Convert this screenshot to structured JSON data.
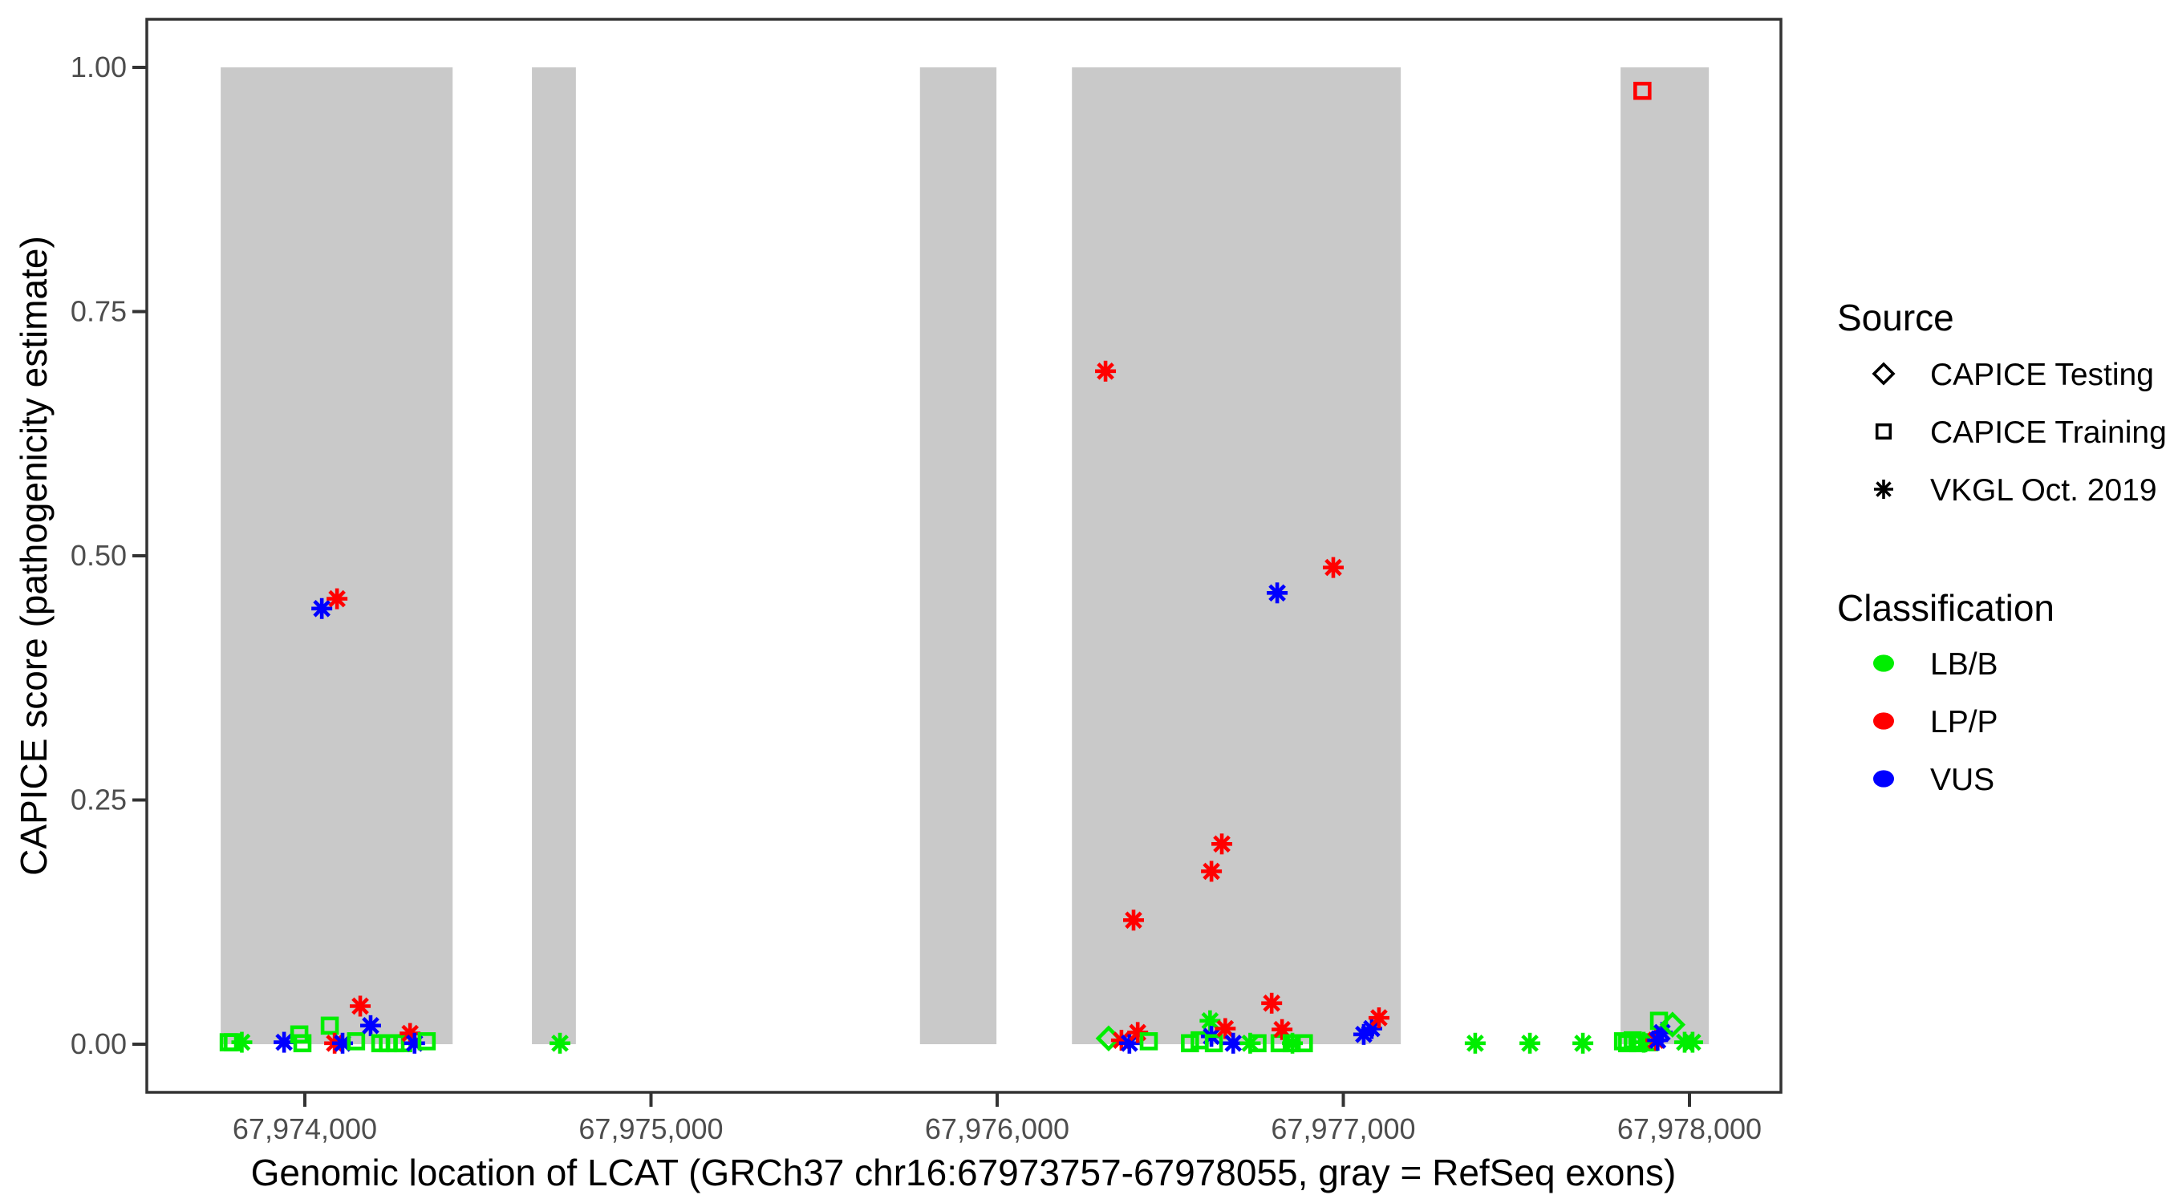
{
  "figure": {
    "type_note": "scatter plot of variant pathogenicity scores over genomic coordinates"
  },
  "chart_data": {
    "type": "scatter",
    "title": "",
    "xlabel": "Genomic location of LCAT (GRCh37 chr16:67973757-67978055, gray = RefSeq exons)",
    "ylabel": "CAPICE score (pathogenicity estimate)",
    "xlim": [
      67973543,
      67978264
    ],
    "ylim": [
      0,
      1
    ],
    "grid": false,
    "x_ticks": [
      67974000,
      67975000,
      67976000,
      67977000,
      67978000
    ],
    "x_tick_labels": [
      "67,974,000",
      "67,975,000",
      "67,976,000",
      "67,977,000",
      "67,978,000"
    ],
    "y_ticks": [
      0.0,
      0.25,
      0.5,
      0.75,
      1.0
    ],
    "y_tick_labels": [
      "0.00",
      "0.25",
      "0.50",
      "0.75",
      "1.00"
    ],
    "exon_color": "#C9C9C9",
    "exons_grch37": [
      {
        "start": 67973757,
        "end": 67974427
      },
      {
        "start": 67974656,
        "end": 67974783
      },
      {
        "start": 67975777,
        "end": 67975998
      },
      {
        "start": 67976216,
        "end": 67977166
      },
      {
        "start": 67977801,
        "end": 67978056
      }
    ],
    "shape_by_source": {
      "CAPICE Testing": "diamond",
      "CAPICE Training": "square",
      "VKGL Oct. 2019": "asterisk"
    },
    "color_by_classification": {
      "LB/B": "#00EE00",
      "LP/P": "#FF0000",
      "VUS": "#0000FF"
    },
    "points": [
      {
        "g": 67973780,
        "score": 0.002,
        "source": "CAPICE Training",
        "class": "LB/B"
      },
      {
        "g": 67973792,
        "score": 0.002,
        "source": "CAPICE Training",
        "class": "LB/B"
      },
      {
        "g": 67973818,
        "score": 0.002,
        "source": "VKGL Oct. 2019",
        "class": "LB/B"
      },
      {
        "g": 67973940,
        "score": 0.002,
        "source": "VKGL Oct. 2019",
        "class": "VUS"
      },
      {
        "g": 67973984,
        "score": 0.01,
        "source": "CAPICE Training",
        "class": "LB/B"
      },
      {
        "g": 67973993,
        "score": 0.001,
        "source": "CAPICE Training",
        "class": "LB/B"
      },
      {
        "g": 67974049,
        "score": 0.446,
        "source": "VKGL Oct. 2019",
        "class": "VUS"
      },
      {
        "g": 67974093,
        "score": 0.456,
        "source": "VKGL Oct. 2019",
        "class": "LP/P"
      },
      {
        "g": 67974072,
        "score": 0.019,
        "source": "CAPICE Training",
        "class": "LB/B"
      },
      {
        "g": 67974086,
        "score": 0.001,
        "source": "VKGL Oct. 2019",
        "class": "LP/P"
      },
      {
        "g": 67974109,
        "score": 0.001,
        "source": "VKGL Oct. 2019",
        "class": "VUS"
      },
      {
        "g": 67974148,
        "score": 0.003,
        "source": "CAPICE Training",
        "class": "LB/B"
      },
      {
        "g": 67974160,
        "score": 0.039,
        "source": "VKGL Oct. 2019",
        "class": "LP/P"
      },
      {
        "g": 67974190,
        "score": 0.019,
        "source": "VKGL Oct. 2019",
        "class": "VUS"
      },
      {
        "g": 67974218,
        "score": 0.001,
        "source": "CAPICE Training",
        "class": "LB/B"
      },
      {
        "g": 67974240,
        "score": 0.001,
        "source": "CAPICE Training",
        "class": "LB/B"
      },
      {
        "g": 67974262,
        "score": 0.001,
        "source": "CAPICE Training",
        "class": "LB/B"
      },
      {
        "g": 67974284,
        "score": 0.001,
        "source": "CAPICE Training",
        "class": "LB/B"
      },
      {
        "g": 67974304,
        "score": 0.011,
        "source": "VKGL Oct. 2019",
        "class": "LP/P"
      },
      {
        "g": 67974317,
        "score": 0.001,
        "source": "VKGL Oct. 2019",
        "class": "VUS"
      },
      {
        "g": 67974352,
        "score": 0.003,
        "source": "CAPICE Training",
        "class": "LB/B"
      },
      {
        "g": 67974737,
        "score": 0.001,
        "source": "VKGL Oct. 2019",
        "class": "LB/B"
      },
      {
        "g": 67976313,
        "score": 0.689,
        "source": "VKGL Oct. 2019",
        "class": "LP/P"
      },
      {
        "g": 67976322,
        "score": 0.006,
        "source": "CAPICE Testing",
        "class": "LB/B"
      },
      {
        "g": 67976359,
        "score": 0.004,
        "source": "VKGL Oct. 2019",
        "class": "LP/P"
      },
      {
        "g": 67976382,
        "score": 0.001,
        "source": "VKGL Oct. 2019",
        "class": "VUS"
      },
      {
        "g": 67976394,
        "score": 0.127,
        "source": "VKGL Oct. 2019",
        "class": "LP/P"
      },
      {
        "g": 67976406,
        "score": 0.012,
        "source": "VKGL Oct. 2019",
        "class": "LP/P"
      },
      {
        "g": 67976438,
        "score": 0.003,
        "source": "CAPICE Training",
        "class": "LB/B"
      },
      {
        "g": 67976557,
        "score": 0.001,
        "source": "CAPICE Training",
        "class": "LB/B"
      },
      {
        "g": 67976585,
        "score": 0.004,
        "source": "CAPICE Training",
        "class": "LB/B"
      },
      {
        "g": 67976615,
        "score": 0.024,
        "source": "VKGL Oct. 2019",
        "class": "LB/B"
      },
      {
        "g": 67976619,
        "score": 0.008,
        "source": "VKGL Oct. 2019",
        "class": "VUS"
      },
      {
        "g": 67976619,
        "score": 0.177,
        "source": "VKGL Oct. 2019",
        "class": "LP/P"
      },
      {
        "g": 67976626,
        "score": 0.001,
        "source": "CAPICE Training",
        "class": "LB/B"
      },
      {
        "g": 67976649,
        "score": 0.205,
        "source": "VKGL Oct. 2019",
        "class": "LP/P"
      },
      {
        "g": 67976659,
        "score": 0.016,
        "source": "VKGL Oct. 2019",
        "class": "LP/P"
      },
      {
        "g": 67976682,
        "score": 0.001,
        "source": "VKGL Oct. 2019",
        "class": "VUS"
      },
      {
        "g": 67976731,
        "score": 0.001,
        "source": "VKGL Oct. 2019",
        "class": "LB/B"
      },
      {
        "g": 67976752,
        "score": 0.001,
        "source": "CAPICE Training",
        "class": "LB/B"
      },
      {
        "g": 67976793,
        "score": 0.042,
        "source": "VKGL Oct. 2019",
        "class": "LP/P"
      },
      {
        "g": 67976809,
        "score": 0.462,
        "source": "VKGL Oct. 2019",
        "class": "VUS"
      },
      {
        "g": 67976816,
        "score": 0.001,
        "source": "CAPICE Training",
        "class": "LB/B"
      },
      {
        "g": 67976823,
        "score": 0.015,
        "source": "VKGL Oct. 2019",
        "class": "LP/P"
      },
      {
        "g": 67976851,
        "score": 0.001,
        "source": "CAPICE Training",
        "class": "LB/B"
      },
      {
        "g": 67976853,
        "score": 0.001,
        "source": "VKGL Oct. 2019",
        "class": "LB/B"
      },
      {
        "g": 67976886,
        "score": 0.001,
        "source": "CAPICE Training",
        "class": "LB/B"
      },
      {
        "g": 67976971,
        "score": 0.488,
        "source": "VKGL Oct. 2019",
        "class": "LP/P"
      },
      {
        "g": 67977059,
        "score": 0.01,
        "source": "VKGL Oct. 2019",
        "class": "VUS"
      },
      {
        "g": 67977082,
        "score": 0.016,
        "source": "VKGL Oct. 2019",
        "class": "VUS"
      },
      {
        "g": 67977103,
        "score": 0.027,
        "source": "VKGL Oct. 2019",
        "class": "LP/P"
      },
      {
        "g": 67977381,
        "score": 0.001,
        "source": "VKGL Oct. 2019",
        "class": "LB/B"
      },
      {
        "g": 67977539,
        "score": 0.001,
        "source": "VKGL Oct. 2019",
        "class": "LB/B"
      },
      {
        "g": 67977692,
        "score": 0.001,
        "source": "VKGL Oct. 2019",
        "class": "LB/B"
      },
      {
        "g": 67977864,
        "score": 0.976,
        "source": "CAPICE Training",
        "class": "LP/P"
      },
      {
        "g": 67977808,
        "score": 0.003,
        "source": "CAPICE Training",
        "class": "LB/B"
      },
      {
        "g": 67977820,
        "score": 0.001,
        "source": "CAPICE Training",
        "class": "LB/B"
      },
      {
        "g": 67977836,
        "score": 0.004,
        "source": "CAPICE Training",
        "class": "LB/B"
      },
      {
        "g": 67977852,
        "score": 0.001,
        "source": "CAPICE Training",
        "class": "LB/B"
      },
      {
        "g": 67977868,
        "score": 0.002,
        "source": "VKGL Oct. 2019",
        "class": "LB/B"
      },
      {
        "g": 67977884,
        "score": 0.002,
        "source": "CAPICE Training",
        "class": "LB/B"
      },
      {
        "g": 67977912,
        "score": 0.024,
        "source": "CAPICE Training",
        "class": "LB/B"
      },
      {
        "g": 67977903,
        "score": 0.004,
        "source": "VKGL Oct. 2019",
        "class": "LP/P"
      },
      {
        "g": 67977908,
        "score": 0.004,
        "source": "VKGL Oct. 2019",
        "class": "VUS"
      },
      {
        "g": 67977921,
        "score": 0.012,
        "source": "VKGL Oct. 2019",
        "class": "VUS"
      },
      {
        "g": 67977951,
        "score": 0.02,
        "source": "CAPICE Testing",
        "class": "LB/B"
      },
      {
        "g": 67977986,
        "score": 0.002,
        "source": "VKGL Oct. 2019",
        "class": "LB/B"
      },
      {
        "g": 67978009,
        "score": 0.002,
        "source": "VKGL Oct. 2019",
        "class": "LB/B"
      }
    ]
  },
  "legend": {
    "source": {
      "title": "Source",
      "items": [
        {
          "label": "CAPICE Testing",
          "shape": "diamond"
        },
        {
          "label": "CAPICE Training",
          "shape": "square"
        },
        {
          "label": "VKGL Oct. 2019",
          "shape": "asterisk"
        }
      ]
    },
    "classification": {
      "title": "Classification",
      "items": [
        {
          "label": "LB/B",
          "color": "#00EE00"
        },
        {
          "label": "LP/P",
          "color": "#FF0000"
        },
        {
          "label": "VUS",
          "color": "#0000FF"
        }
      ]
    }
  },
  "style": {
    "panel_border_color": "#333333",
    "tick_color": "#333333",
    "tick_label_color": "#4D4D4D",
    "background": "#FFFFFF"
  }
}
